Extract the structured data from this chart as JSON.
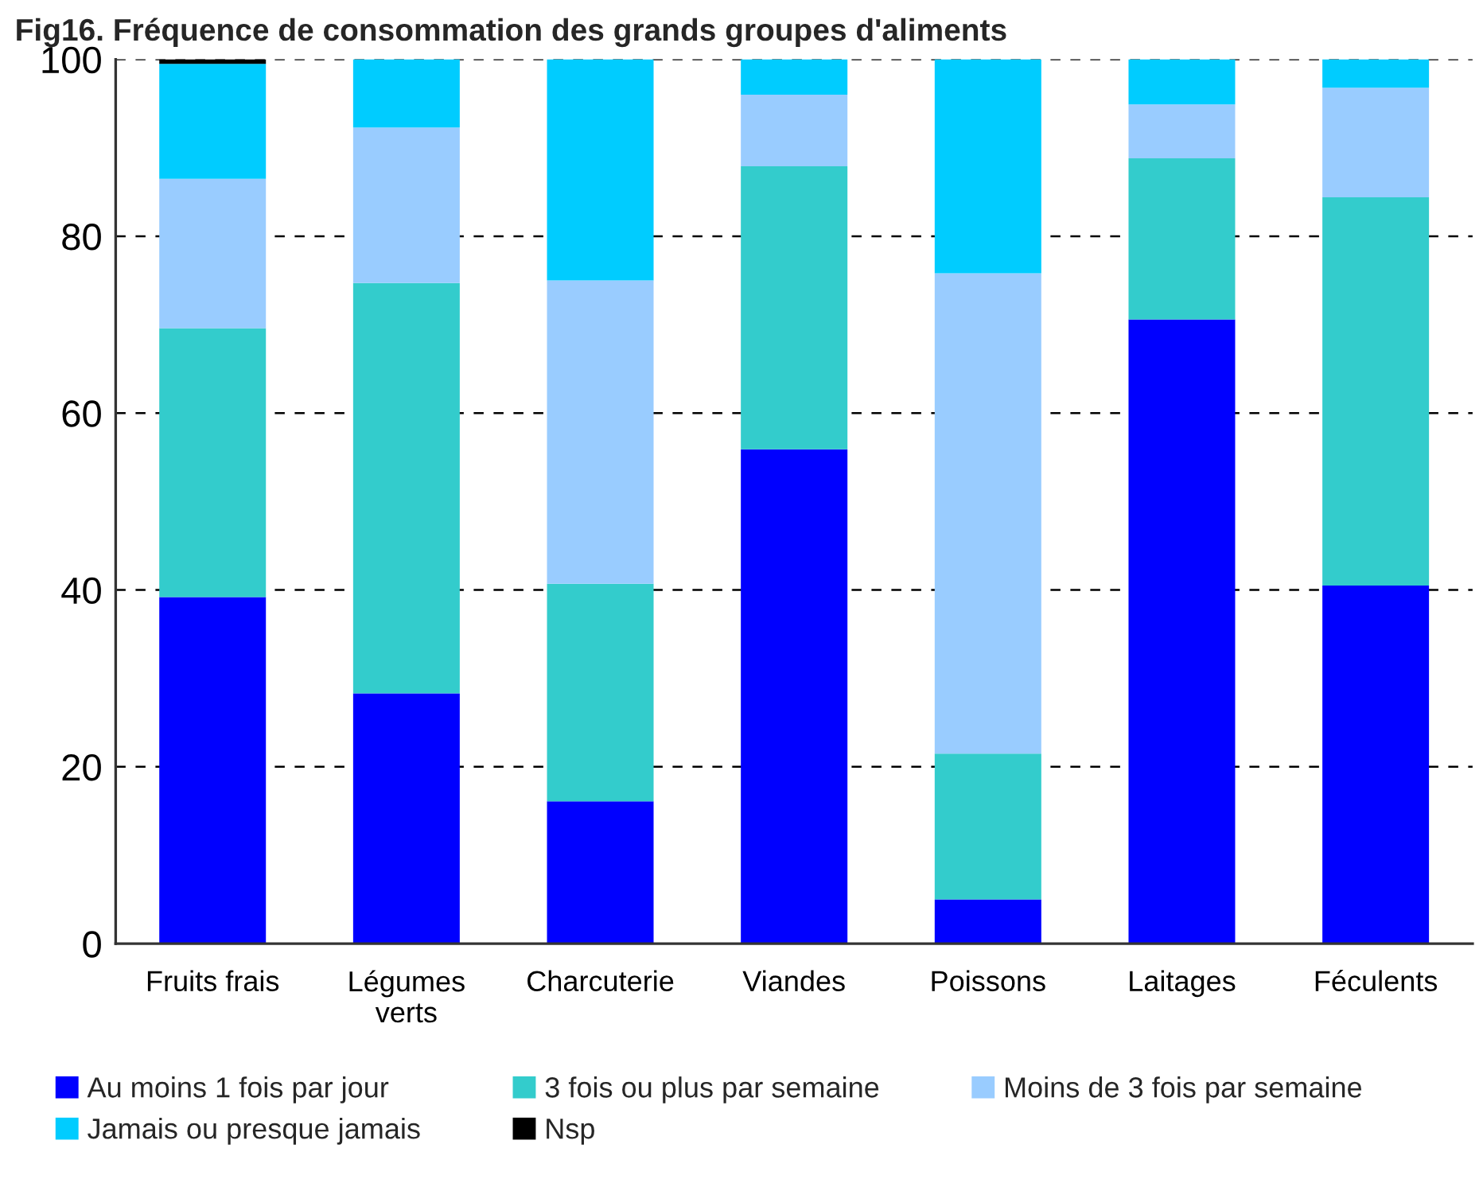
{
  "chart_data": {
    "type": "bar",
    "stacked": true,
    "title": "Fig16. Fréquence de consommation des grands groupes d'aliments",
    "categories": [
      "Fruits frais",
      "Légumes verts",
      "Charcuterie",
      "Viandes",
      "Poissons",
      "Laitages",
      "Féculents"
    ],
    "series": [
      {
        "name": "Au moins 1 fois par jour",
        "color": "#0000ff",
        "values": [
          39.2,
          28.3,
          16.1,
          55.9,
          5.0,
          70.6,
          40.5
        ]
      },
      {
        "name": "3 fois ou plus par semaine",
        "color": "#33cccc",
        "values": [
          30.4,
          46.4,
          24.6,
          32.0,
          16.5,
          18.2,
          43.9
        ]
      },
      {
        "name": "Moins de 3 fois par semaine",
        "color": "#99ccff",
        "values": [
          16.9,
          17.6,
          34.3,
          8.1,
          54.3,
          6.1,
          12.4
        ]
      },
      {
        "name": "Jamais ou presque jamais",
        "color": "#00ccff",
        "values": [
          13.0,
          7.7,
          25.0,
          4.0,
          24.2,
          5.1,
          3.2
        ]
      },
      {
        "name": "Nsp",
        "color": "#000000",
        "values": [
          0.5,
          0,
          0,
          0,
          0,
          0,
          0
        ]
      }
    ],
    "ylim": [
      0,
      100
    ],
    "yticks": [
      0,
      20,
      40,
      60,
      80,
      100
    ],
    "grid": "y",
    "legend": "bottom"
  }
}
